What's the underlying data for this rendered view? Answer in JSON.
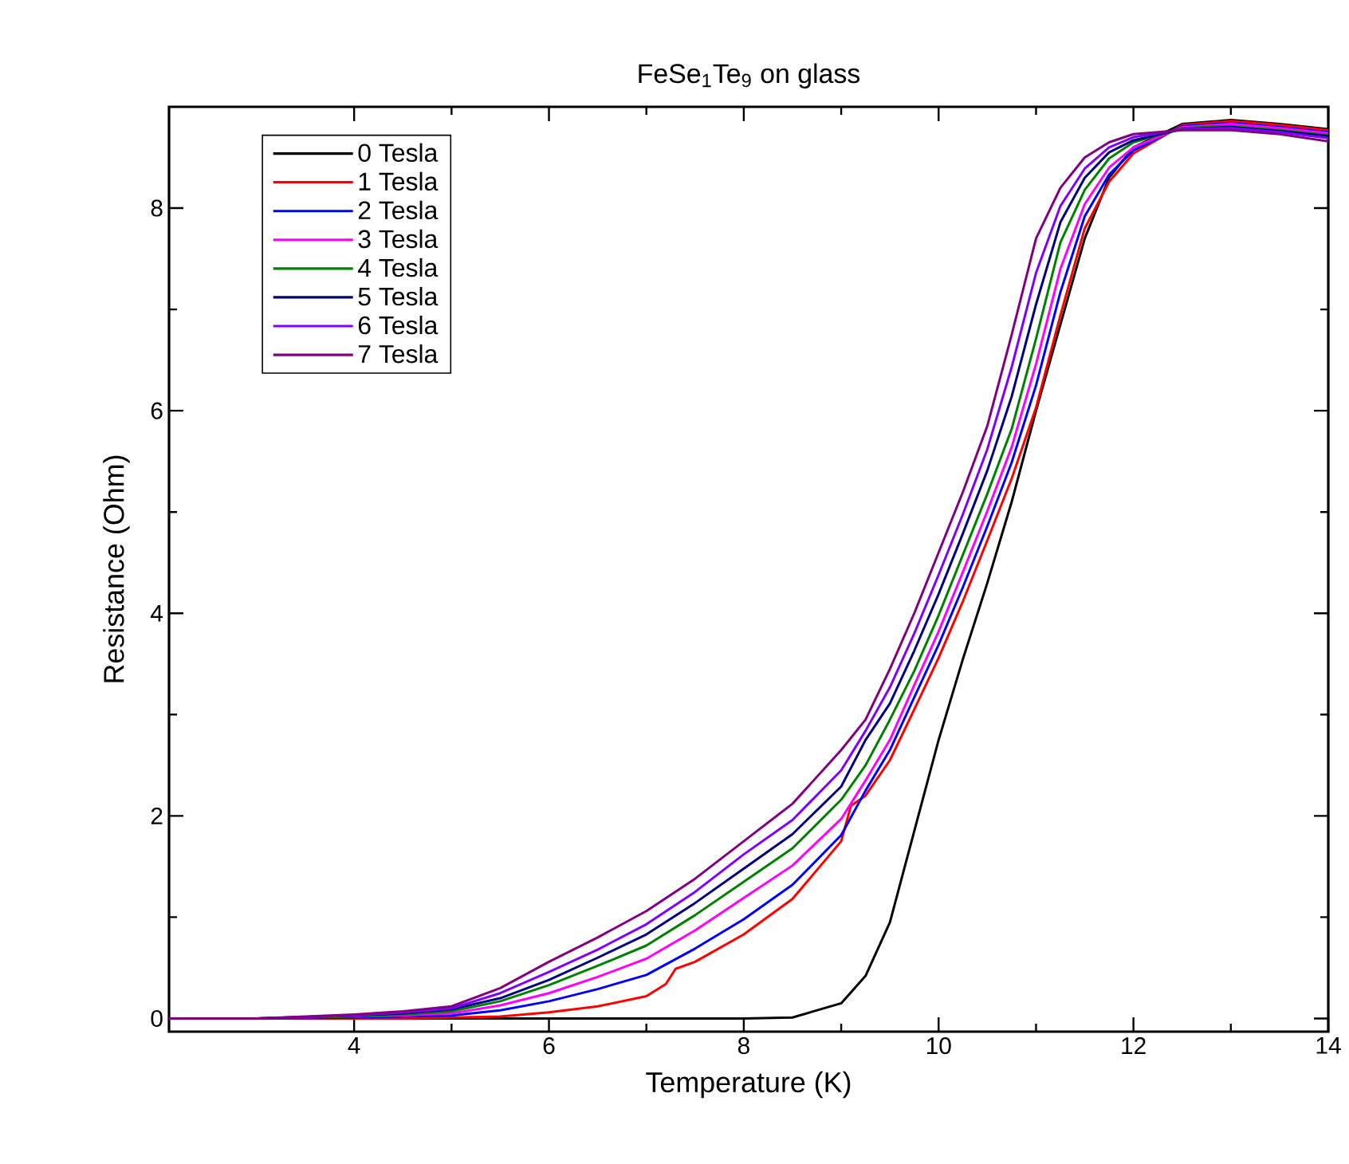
{
  "chart_data": {
    "type": "line",
    "title": "FeSe$_{1}$Te$_{9}$ on glass",
    "xlabel": "Temperature (K)",
    "ylabel": "Resistance (Ohm)",
    "xlim": [
      2.1,
      14
    ],
    "ylim": [
      -0.13,
      9.0
    ],
    "xticks": [
      4,
      6,
      8,
      10,
      12,
      14
    ],
    "yticks": [
      0,
      2,
      4,
      6,
      8
    ],
    "grid": false,
    "legend": "top left",
    "marker": "none",
    "line_style": "solid",
    "x": [
      2.1,
      3,
      4,
      4.5,
      5,
      5.5,
      6,
      6.5,
      7,
      7.5,
      8,
      8.5,
      9,
      9.25,
      9.5,
      9.75,
      10,
      10.25,
      10.5,
      10.75,
      11,
      11.25,
      11.5,
      11.75,
      12,
      12.5,
      13,
      13.5,
      14
    ],
    "series": [
      {
        "name": "0 Tesla",
        "color": "#000000",
        "values": [
          0,
          0,
          0,
          0,
          0,
          0,
          0,
          0,
          0,
          0,
          0,
          0.01,
          0.15,
          0.42,
          0.95,
          1.85,
          2.75,
          3.55,
          4.3,
          5.1,
          6.0,
          6.85,
          7.7,
          8.3,
          8.6,
          8.83,
          8.87,
          8.83,
          8.78
        ]
      },
      {
        "name": "1 Tesla",
        "color": "#ff0000",
        "x": [
          2.1,
          3,
          4,
          4.5,
          5,
          5.5,
          6,
          6.5,
          7,
          7.2,
          7.3,
          7.5,
          8,
          8.5,
          9,
          9.1,
          9.25,
          9.5,
          9.75,
          10,
          10.25,
          10.5,
          10.75,
          11,
          11.25,
          11.5,
          11.75,
          12,
          12.5,
          13,
          13.5,
          14
        ],
        "values": [
          0,
          0,
          0,
          0,
          0.01,
          0.02,
          0.06,
          0.12,
          0.22,
          0.34,
          0.49,
          0.56,
          0.83,
          1.18,
          1.75,
          2.1,
          2.2,
          2.55,
          3.05,
          3.56,
          4.12,
          4.72,
          5.33,
          6.03,
          6.94,
          7.8,
          8.26,
          8.54,
          8.82,
          8.86,
          8.82,
          8.77
        ]
      },
      {
        "name": "2 Tesla",
        "color": "#0000ff",
        "values": [
          0,
          0,
          0.01,
          0.02,
          0.03,
          0.08,
          0.17,
          0.29,
          0.43,
          0.69,
          0.98,
          1.32,
          1.81,
          2.25,
          2.65,
          3.17,
          3.69,
          4.26,
          4.86,
          5.49,
          6.25,
          7.17,
          7.92,
          8.33,
          8.57,
          8.81,
          8.84,
          8.8,
          8.75
        ]
      },
      {
        "name": "3 Tesla",
        "color": "#ff00ff",
        "values": [
          null,
          null,
          0.02,
          0.03,
          0.05,
          0.13,
          0.25,
          0.41,
          0.59,
          0.87,
          1.19,
          1.51,
          1.97,
          2.35,
          2.75,
          3.29,
          3.82,
          4.41,
          5.01,
          5.64,
          6.46,
          7.4,
          8.04,
          8.4,
          8.6,
          8.8,
          8.83,
          8.79,
          8.74
        ]
      },
      {
        "name": "4 Tesla",
        "color": "#008000",
        "values": [
          0,
          0,
          0.02,
          0.04,
          0.07,
          0.17,
          0.33,
          0.52,
          0.72,
          1.02,
          1.35,
          1.68,
          2.16,
          2.5,
          2.95,
          3.43,
          3.98,
          4.58,
          5.18,
          5.82,
          6.71,
          7.66,
          8.18,
          8.49,
          8.65,
          8.79,
          8.81,
          8.77,
          8.72
        ]
      },
      {
        "name": "5 Tesla",
        "color": "#000080",
        "values": [
          0,
          0,
          0.03,
          0.05,
          0.09,
          0.2,
          0.38,
          0.6,
          0.83,
          1.14,
          1.48,
          1.82,
          2.29,
          2.75,
          3.11,
          3.63,
          4.19,
          4.79,
          5.41,
          6.14,
          7.05,
          7.86,
          8.3,
          8.55,
          8.67,
          8.78,
          8.8,
          8.76,
          8.71
        ]
      },
      {
        "name": "6 Tesla",
        "color": "#8000ff",
        "values": [
          0,
          0,
          0.03,
          0.06,
          0.1,
          0.25,
          0.46,
          0.68,
          0.93,
          1.25,
          1.62,
          1.96,
          2.45,
          2.84,
          3.27,
          3.8,
          4.38,
          4.98,
          5.62,
          6.43,
          7.36,
          8.02,
          8.39,
          8.6,
          8.7,
          8.78,
          8.79,
          8.75,
          8.69
        ]
      },
      {
        "name": "7 Tesla",
        "color": "#800080",
        "values": [
          0,
          0,
          0.04,
          0.07,
          0.12,
          0.3,
          0.56,
          0.8,
          1.06,
          1.38,
          1.75,
          2.12,
          2.65,
          2.95,
          3.45,
          4.0,
          4.6,
          5.2,
          5.85,
          6.75,
          7.7,
          8.2,
          8.5,
          8.65,
          8.73,
          8.77,
          8.77,
          8.73,
          8.66
        ]
      }
    ]
  }
}
